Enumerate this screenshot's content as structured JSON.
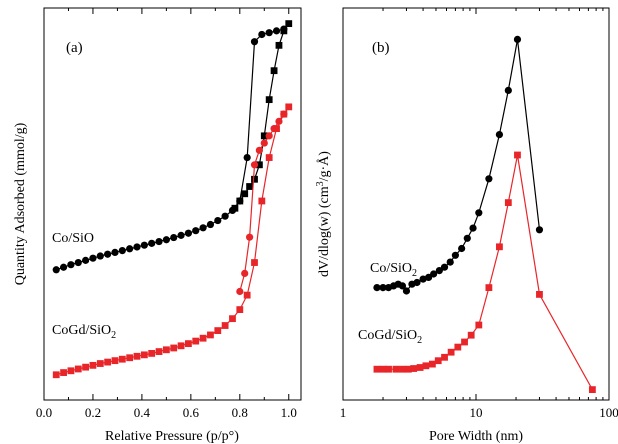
{
  "chart_data": [
    {
      "type": "line",
      "panel_label": "(a)",
      "xlabel": "Relative Pressure (p/p°)",
      "ylabel": "Quantity Adsorbed (mmol/g)",
      "xlim": [
        0.0,
        1.05
      ],
      "ylim": [
        0,
        1
      ],
      "xticks": [
        0.0,
        0.2,
        0.4,
        0.6,
        0.8,
        1.0
      ],
      "xtick_labels": [
        "0.0",
        "0.2",
        "0.4",
        "0.6",
        "0.8",
        "1.0"
      ],
      "yticks_shown": false,
      "grid": false,
      "series": [
        {
          "name": "Co/SiO",
          "label_text": "Co/SiO",
          "color": "#000000",
          "branches": [
            {
              "marker": "circle",
              "x": [
                0.05,
                0.08,
                0.11,
                0.14,
                0.17,
                0.2,
                0.23,
                0.26,
                0.29,
                0.32,
                0.35,
                0.38,
                0.41,
                0.44,
                0.47,
                0.5,
                0.53,
                0.56,
                0.59,
                0.62,
                0.65,
                0.68,
                0.71,
                0.74,
                0.77,
                0.8,
                0.83,
                0.86,
                0.89,
                0.92,
                0.95,
                0.98
              ],
              "y": [
                0.31,
                0.317,
                0.324,
                0.33,
                0.336,
                0.342,
                0.348,
                0.353,
                0.358,
                0.363,
                0.368,
                0.373,
                0.378,
                0.383,
                0.388,
                0.393,
                0.399,
                0.405,
                0.411,
                0.418,
                0.426,
                0.435,
                0.446,
                0.458,
                0.474,
                0.5,
                0.62,
                0.94,
                0.96,
                0.965,
                0.97,
                0.975
              ]
            },
            {
              "marker": "square",
              "x": [
                0.78,
                0.8,
                0.82,
                0.84,
                0.86,
                0.88,
                0.9,
                0.92,
                0.94,
                0.96,
                0.98,
                1.0
              ],
              "y": [
                0.48,
                0.5,
                0.52,
                0.54,
                0.56,
                0.6,
                0.68,
                0.78,
                0.86,
                0.93,
                0.97,
                0.99
              ]
            }
          ]
        },
        {
          "name": "CoGd/SiO2",
          "label_text": "CoGd/SiO",
          "label_sub": "2",
          "color": "#e8262a",
          "branches": [
            {
              "marker": "square",
              "x": [
                0.05,
                0.08,
                0.11,
                0.14,
                0.17,
                0.2,
                0.23,
                0.26,
                0.29,
                0.32,
                0.35,
                0.38,
                0.41,
                0.44,
                0.47,
                0.5,
                0.53,
                0.56,
                0.59,
                0.62,
                0.65,
                0.68,
                0.71,
                0.74,
                0.77,
                0.8,
                0.83,
                0.86,
                0.89,
                0.92,
                0.95,
                0.98,
                1.0
              ],
              "y": [
                0.02,
                0.026,
                0.031,
                0.036,
                0.041,
                0.046,
                0.051,
                0.055,
                0.059,
                0.063,
                0.067,
                0.071,
                0.075,
                0.079,
                0.084,
                0.089,
                0.094,
                0.1,
                0.106,
                0.113,
                0.121,
                0.13,
                0.142,
                0.156,
                0.175,
                0.2,
                0.24,
                0.33,
                0.5,
                0.62,
                0.7,
                0.74,
                0.76
              ]
            },
            {
              "marker": "circle",
              "x": [
                0.8,
                0.82,
                0.84,
                0.86,
                0.88,
                0.9,
                0.92,
                0.94,
                0.96,
                0.98
              ],
              "y": [
                0.25,
                0.3,
                0.4,
                0.6,
                0.64,
                0.66,
                0.68,
                0.7,
                0.72,
                0.74
              ]
            }
          ]
        }
      ]
    },
    {
      "type": "line",
      "panel_label": "(b)",
      "xlabel": "Pore Width (nm)",
      "ylabel_parts": [
        "dV/dlog(w) (cm",
        "3",
        "/g·Å)"
      ],
      "xscale": "log",
      "xlim": [
        1,
        100
      ],
      "ylim": [
        0,
        1
      ],
      "xticks": [
        1,
        10,
        100
      ],
      "xtick_labels": [
        "1",
        "10",
        "100"
      ],
      "yticks_shown": false,
      "grid": false,
      "series": [
        {
          "name": "Co/SiO2",
          "label_text": "Co/SiO",
          "label_sub": "2",
          "color": "#000000",
          "marker": "circle",
          "x": [
            1.8,
            2.0,
            2.2,
            2.4,
            2.6,
            2.8,
            3.0,
            3.3,
            3.6,
            4.0,
            4.4,
            4.8,
            5.3,
            5.8,
            6.4,
            7.0,
            7.8,
            8.6,
            9.5,
            10.5,
            12.5,
            15.0,
            17.5,
            20.5,
            30.0
          ],
          "y": [
            0.26,
            0.26,
            0.26,
            0.265,
            0.27,
            0.265,
            0.25,
            0.27,
            0.275,
            0.285,
            0.29,
            0.3,
            0.31,
            0.32,
            0.335,
            0.355,
            0.375,
            0.405,
            0.435,
            0.48,
            0.58,
            0.71,
            0.84,
            0.99,
            0.43
          ]
        },
        {
          "name": "CoGd/SiO2",
          "label_text": "CoGd/SiO",
          "label_sub": "2",
          "color": "#e8262a",
          "marker": "square",
          "x": [
            1.8,
            2.0,
            2.2,
            2.5,
            2.8,
            3.1,
            3.4,
            3.8,
            4.2,
            4.7,
            5.2,
            5.8,
            6.5,
            7.3,
            8.2,
            9.2,
            10.5,
            12.5,
            15.0,
            17.5,
            20.5,
            30.0,
            75.0
          ],
          "y": [
            0.02,
            0.02,
            0.02,
            0.02,
            0.02,
            0.02,
            0.022,
            0.025,
            0.03,
            0.035,
            0.045,
            0.055,
            0.07,
            0.085,
            0.1,
            0.12,
            0.15,
            0.26,
            0.38,
            0.51,
            0.65,
            0.24,
            -0.04
          ]
        }
      ]
    }
  ]
}
